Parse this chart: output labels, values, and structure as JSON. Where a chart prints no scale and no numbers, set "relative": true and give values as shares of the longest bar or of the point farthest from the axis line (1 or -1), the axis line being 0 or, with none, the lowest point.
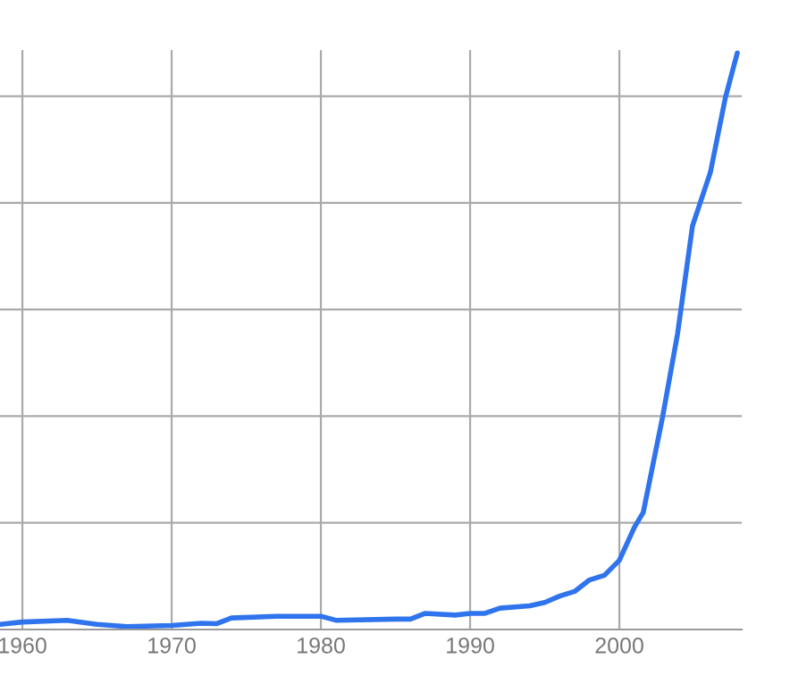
{
  "chart_data": {
    "type": "line",
    "relative": true,
    "grid": true,
    "legend": false,
    "xlim": [
      1958.5,
      2008.2
    ],
    "xticks": [
      1960,
      1970,
      1980,
      1990,
      2000
    ],
    "series": [
      {
        "color": "#2f74ec",
        "x": [
          1958.5,
          1960,
          1963,
          1965,
          1967,
          1970,
          1972,
          1973,
          1974,
          1977,
          1980,
          1981,
          1985,
          1986,
          1987,
          1989,
          1990,
          1991,
          1992,
          1994,
          1995,
          1996,
          1997,
          1998,
          1999,
          2000,
          2001,
          2001.6,
          2002.9,
          2003.9,
          2004.9,
          2006.1,
          2007.1,
          2007.9
        ],
        "values": [
          0.009,
          0.013,
          0.016,
          0.009,
          0.005,
          0.007,
          0.011,
          0.01,
          0.02,
          0.023,
          0.023,
          0.016,
          0.018,
          0.018,
          0.028,
          0.025,
          0.028,
          0.028,
          0.037,
          0.041,
          0.047,
          0.058,
          0.066,
          0.086,
          0.094,
          0.12,
          0.177,
          0.203,
          0.369,
          0.513,
          0.7,
          0.793,
          0.922,
          1.0
        ]
      }
    ]
  }
}
